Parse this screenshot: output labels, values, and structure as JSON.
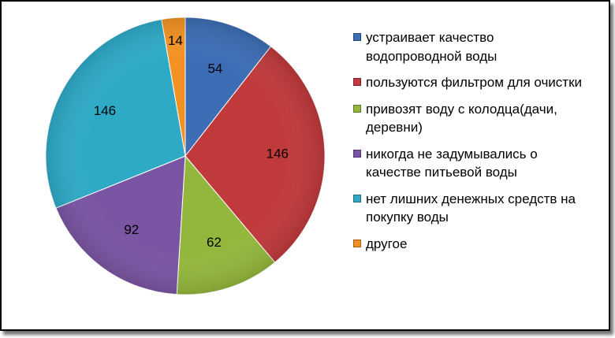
{
  "chart_data": {
    "type": "pie",
    "title": "",
    "slices": [
      {
        "label": "устраивает качество водопроводной воды",
        "value": 54,
        "color": "#3d6db5"
      },
      {
        "label": "пользуются фильтром для очистки",
        "value": 146,
        "color": "#c0393b"
      },
      {
        "label": "привозят воду с колодца(дачи, деревни)",
        "value": 62,
        "color": "#93b73c"
      },
      {
        "label": "никогда не задумывались о качестве питьевой воды",
        "value": 92,
        "color": "#7a55a3"
      },
      {
        "label": "нет лишних денежных средств на покупку воды",
        "value": 146,
        "color": "#2eaac7"
      },
      {
        "label": "другое",
        "value": 14,
        "color": "#f39224"
      }
    ],
    "legend_position": "right",
    "data_labels": true
  }
}
